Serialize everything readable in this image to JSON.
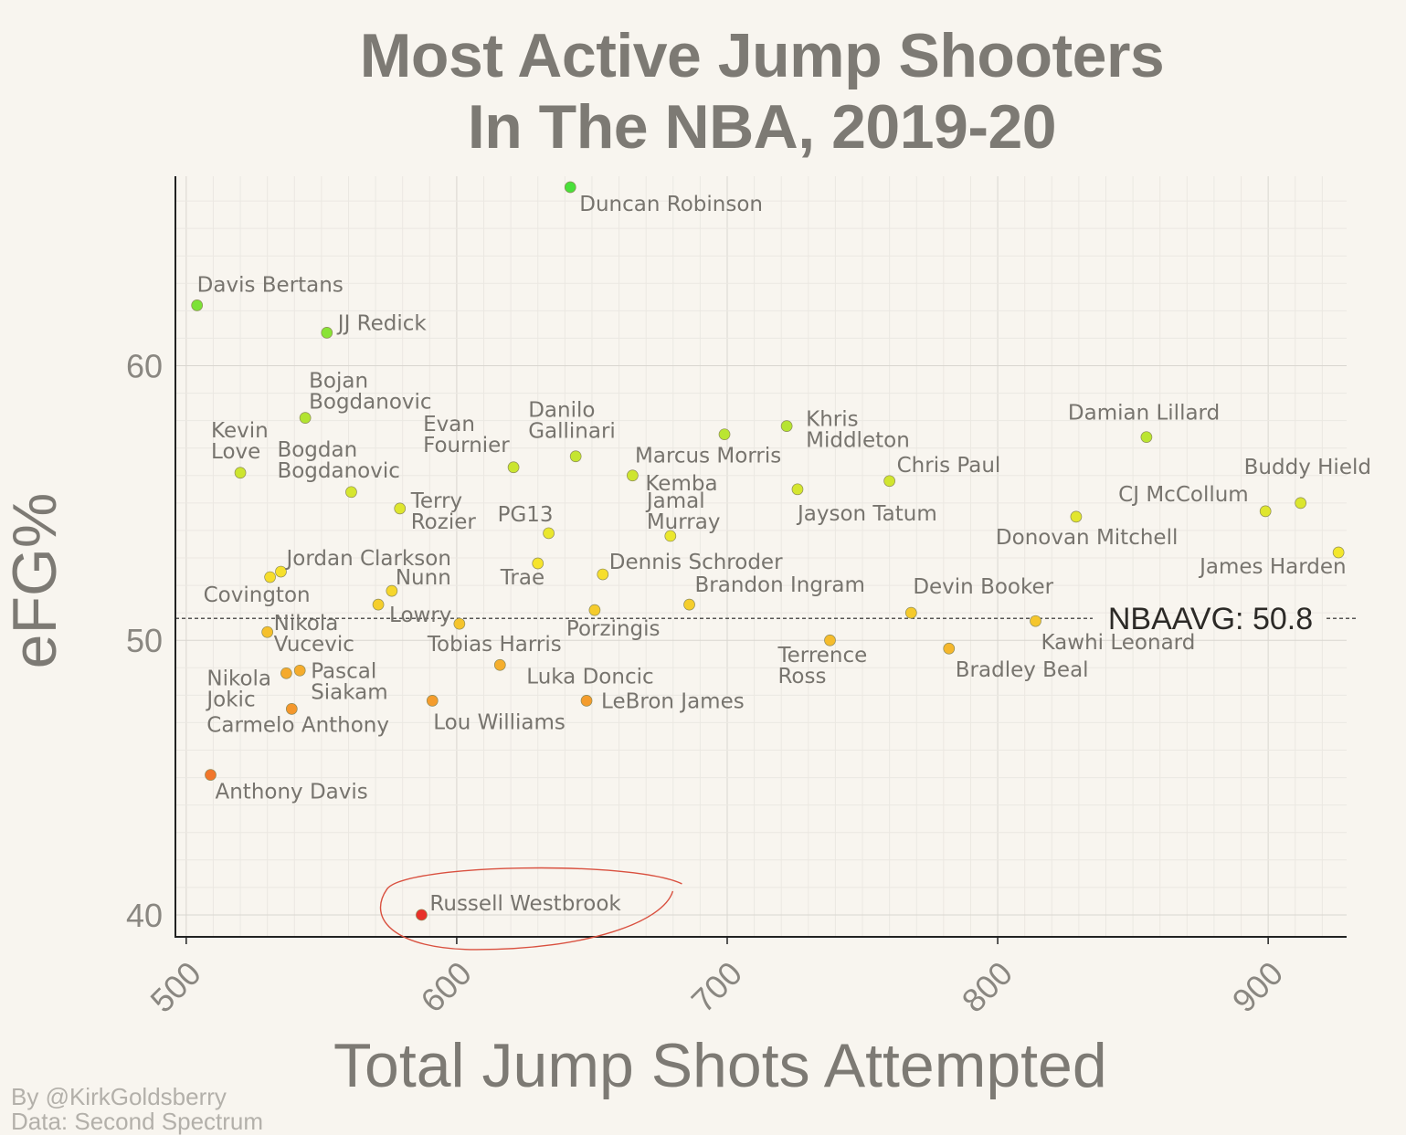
{
  "chart_data": {
    "type": "scatter",
    "title": [
      "Most Active Jump Shooters",
      "In The NBA, 2019-20"
    ],
    "xlabel": "Total Jump Shots Attempted",
    "ylabel": "eFG%",
    "xlim": [
      496,
      929
    ],
    "ylim": [
      39.2,
      66.9
    ],
    "xticks": [
      500,
      600,
      700,
      800,
      900
    ],
    "yticks": [
      40,
      50,
      60
    ],
    "grid": true,
    "reference_line": {
      "value": 50.8,
      "label": "NBAAVG: 50.8"
    },
    "color_scale": [
      "#e8312a",
      "#f4902c",
      "#f6e72c",
      "#49e03a"
    ],
    "points": [
      {
        "name": "Duncan Robinson",
        "x": 642,
        "y": 66.5
      },
      {
        "name": "Davis Bertans",
        "x": 504,
        "y": 62.2
      },
      {
        "name": "JJ Redick",
        "x": 552,
        "y": 61.2
      },
      {
        "name": "Bojan Bogdanovic",
        "x": 544,
        "y": 58.1
      },
      {
        "name": "Kevin Love",
        "x": 520,
        "y": 56.1
      },
      {
        "name": "Bogdan Bogdanovic",
        "x": 561,
        "y": 55.4
      },
      {
        "name": "Evan Fournier",
        "x": 621,
        "y": 56.3
      },
      {
        "name": "Danilo Gallinari",
        "x": 644,
        "y": 56.7
      },
      {
        "name": "Marcus Morris",
        "x": 699,
        "y": 57.5
      },
      {
        "name": "Khris Middleton",
        "x": 722,
        "y": 57.8
      },
      {
        "name": "Kemba",
        "x": 665,
        "y": 56.0
      },
      {
        "name": "Jayson Tatum",
        "x": 726,
        "y": 55.5
      },
      {
        "name": "Chris Paul",
        "x": 760,
        "y": 55.8
      },
      {
        "name": "Damian Lillard",
        "x": 855,
        "y": 57.4
      },
      {
        "name": "Buddy Hield",
        "x": 912,
        "y": 55.0
      },
      {
        "name": "CJ McCollum",
        "x": 899,
        "y": 54.7
      },
      {
        "name": "Donovan Mitchell",
        "x": 829,
        "y": 54.5
      },
      {
        "name": "James Harden",
        "x": 926,
        "y": 53.2
      },
      {
        "name": "Terry Rozier",
        "x": 579,
        "y": 54.8
      },
      {
        "name": "PG13",
        "x": 634,
        "y": 53.9
      },
      {
        "name": "Jamal Murray",
        "x": 679,
        "y": 53.8
      },
      {
        "name": "Trae",
        "x": 630,
        "y": 52.8
      },
      {
        "name": "Dennis Schroder",
        "x": 654,
        "y": 52.4
      },
      {
        "name": "Jordan Clarkson",
        "x": 535,
        "y": 52.5
      },
      {
        "name": "Covington",
        "x": 531,
        "y": 52.3
      },
      {
        "name": "Nunn",
        "x": 576,
        "y": 51.8
      },
      {
        "name": "Lowry",
        "x": 571,
        "y": 51.3
      },
      {
        "name": "Brandon Ingram",
        "x": 686,
        "y": 51.3
      },
      {
        "name": "Porzingis",
        "x": 651,
        "y": 51.1
      },
      {
        "name": "Devin Booker",
        "x": 768,
        "y": 51.0
      },
      {
        "name": "Kawhi Leonard",
        "x": 814,
        "y": 50.7
      },
      {
        "name": "Tobias Harris",
        "x": 601,
        "y": 50.6
      },
      {
        "name": "Nikola Vucevic",
        "x": 530,
        "y": 50.3
      },
      {
        "name": "Terrence Ross",
        "x": 738,
        "y": 50.0
      },
      {
        "name": "Bradley Beal",
        "x": 782,
        "y": 49.7
      },
      {
        "name": "Pascal Siakam",
        "x": 542,
        "y": 48.9
      },
      {
        "name": "Nikola Jokic",
        "x": 537,
        "y": 48.8
      },
      {
        "name": "Luka Doncic",
        "x": 616,
        "y": 49.1
      },
      {
        "name": "LeBron James",
        "x": 648,
        "y": 47.8
      },
      {
        "name": "Lou Williams",
        "x": 591,
        "y": 47.8
      },
      {
        "name": "Carmelo Anthony",
        "x": 539,
        "y": 47.5
      },
      {
        "name": "Anthony Davis",
        "x": 509,
        "y": 45.1
      },
      {
        "name": "Russell Westbrook",
        "x": 587,
        "y": 40.0
      }
    ],
    "highlight": "Russell Westbrook"
  },
  "credits": [
    "By @KirkGoldsberry",
    "Data: Second Spectrum"
  ]
}
